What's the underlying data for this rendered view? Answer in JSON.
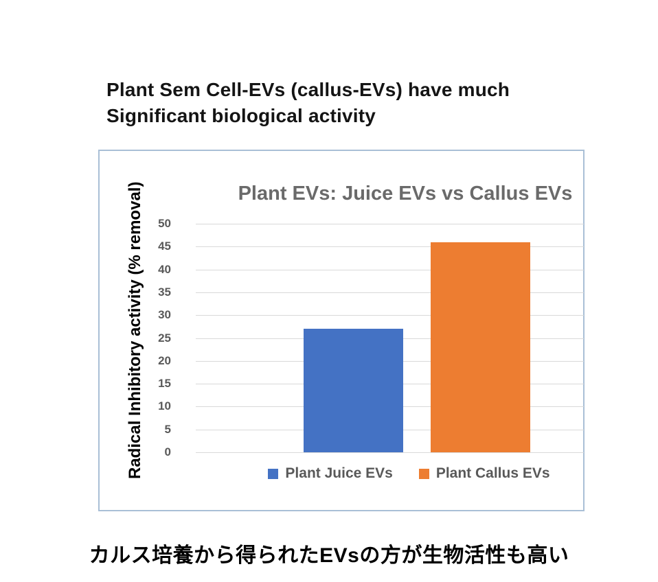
{
  "page": {
    "title_line1": "Plant Sem Cell-EVs (callus-EVs) have much",
    "title_line2": "Significant biological activity",
    "footer_caption": "カルス培養から得られたEVsの方が生物活性も高い"
  },
  "chart_data": {
    "type": "bar",
    "title": "Plant EVs: Juice EVs vs Callus EVs",
    "xlabel": "",
    "ylabel": "Radical Inhibitory activity (% removal)",
    "ylim": [
      0,
      50
    ],
    "ytick_step": 5,
    "grid": true,
    "legend_position": "bottom",
    "series": [
      {
        "name": "Plant Juice EVs",
        "value": 27,
        "color": "#4472C4"
      },
      {
        "name": "Plant Callus EVs",
        "value": 46,
        "color": "#ED7D31"
      }
    ],
    "colors": {
      "gridline": "#D9D9D9",
      "panel_border": "#A9BFD6",
      "title_text": "#6A6A6A",
      "tick_text": "#595959",
      "legend_text": "#595959"
    }
  }
}
